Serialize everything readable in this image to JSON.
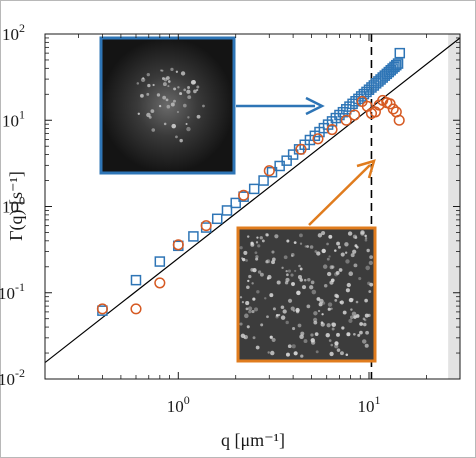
{
  "chart_data": {
    "type": "scatter",
    "title": "",
    "xlabel": "q [μm⁻¹]",
    "ylabel": "Γ(q) [s⁻¹]",
    "xscale": "log",
    "yscale": "log",
    "xlim": [
      0.2,
      30
    ],
    "ylim": [
      0.01,
      100
    ],
    "grid": false,
    "x_ticks": [
      {
        "value": 1,
        "base": "10",
        "exp": "0"
      },
      {
        "value": 10,
        "base": "10",
        "exp": "1"
      }
    ],
    "y_ticks": [
      {
        "value": 0.01,
        "base": "10",
        "exp": "-2"
      },
      {
        "value": 0.1,
        "base": "10",
        "exp": "-1"
      },
      {
        "value": 1,
        "base": "10",
        "exp": "0"
      },
      {
        "value": 10,
        "base": "10",
        "exp": "1"
      },
      {
        "value": 100,
        "base": "10",
        "exp": "2"
      }
    ],
    "fit_line": {
      "color": "#000000",
      "points": [
        [
          0.2,
          0.0155
        ],
        [
          30,
          90
        ]
      ]
    },
    "cutoff_line": {
      "x": 10.3,
      "color": "#000000",
      "style": "dashed"
    },
    "shaded_region": {
      "x_from": 26,
      "x_to": 30,
      "color": "#e3e3e3"
    },
    "series": [
      {
        "marker": "square",
        "color": "#2e75b6",
        "points": [
          [
            0.4,
            0.062
          ],
          [
            0.6,
            0.14
          ],
          [
            0.8,
            0.23
          ],
          [
            1.0,
            0.35
          ],
          [
            1.2,
            0.45
          ],
          [
            1.4,
            0.57
          ],
          [
            1.6,
            0.72
          ],
          [
            1.8,
            0.9
          ],
          [
            2.0,
            1.1
          ],
          [
            2.2,
            1.3
          ],
          [
            2.5,
            1.6
          ],
          [
            2.8,
            2.0
          ],
          [
            3.1,
            2.5
          ],
          [
            3.4,
            2.95
          ],
          [
            3.7,
            3.4
          ],
          [
            4.0,
            4.0
          ],
          [
            4.3,
            4.6
          ],
          [
            4.6,
            5.2
          ],
          [
            4.9,
            5.9
          ],
          [
            5.2,
            6.6
          ],
          [
            5.5,
            7.3
          ],
          [
            5.8,
            8.1
          ],
          [
            6.1,
            8.9
          ],
          [
            6.4,
            9.7
          ],
          [
            6.7,
            10.6
          ],
          [
            7.0,
            11.5
          ],
          [
            7.3,
            12.4
          ],
          [
            7.6,
            13.4
          ],
          [
            7.9,
            14.4
          ],
          [
            8.2,
            15.5
          ],
          [
            8.5,
            16.6
          ],
          [
            8.8,
            17.7
          ],
          [
            9.1,
            18.9
          ],
          [
            9.4,
            20.1
          ],
          [
            9.7,
            21.3
          ],
          [
            10.0,
            22.6
          ],
          [
            10.3,
            24.0
          ],
          [
            10.6,
            25.3
          ],
          [
            10.9,
            26.8
          ],
          [
            11.2,
            28.2
          ],
          [
            11.5,
            29.7
          ],
          [
            11.8,
            31.3
          ],
          [
            12.1,
            32.9
          ],
          [
            12.4,
            34.5
          ],
          [
            12.7,
            36.2
          ],
          [
            13.0,
            38.0
          ],
          [
            13.3,
            39.8
          ],
          [
            13.6,
            41.6
          ],
          [
            13.9,
            43.5
          ],
          [
            14.2,
            45.4
          ],
          [
            14.5,
            60.0
          ]
        ]
      },
      {
        "marker": "circle",
        "color": "#d65a23",
        "points": [
          [
            0.4,
            0.065
          ],
          [
            0.6,
            0.065
          ],
          [
            0.8,
            0.13
          ],
          [
            1.0,
            0.36
          ],
          [
            1.4,
            0.6
          ],
          [
            2.2,
            1.35
          ],
          [
            3.0,
            2.6
          ],
          [
            4.4,
            4.6
          ],
          [
            5.4,
            6.1
          ],
          [
            6.4,
            7.8
          ],
          [
            7.6,
            10.0
          ],
          [
            8.4,
            11.5
          ],
          [
            9.2,
            16.5
          ],
          [
            9.8,
            14.5
          ],
          [
            10.3,
            12.0
          ],
          [
            10.8,
            12.5
          ],
          [
            11.3,
            15.0
          ],
          [
            11.8,
            17.0
          ],
          [
            12.4,
            16.0
          ],
          [
            12.9,
            15.5
          ],
          [
            13.4,
            13.5
          ],
          [
            13.9,
            12.5
          ],
          [
            14.4,
            10.0
          ]
        ]
      }
    ]
  }
}
